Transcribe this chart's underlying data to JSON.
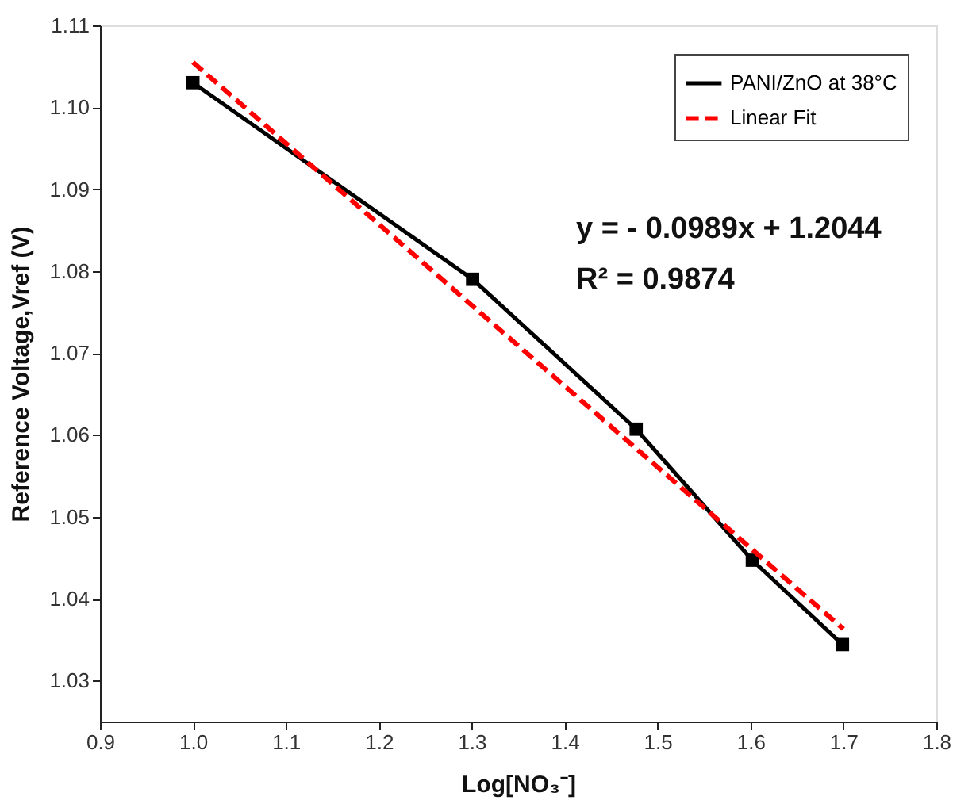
{
  "chart_data": {
    "type": "line",
    "xlabel": "Log[NO₃⁻]",
    "ylabel": "Reference Voltage,Vref (V)",
    "xlim": [
      0.9,
      1.8
    ],
    "xticks": [
      0.9,
      {
        "value": 1,
        "label": "1.0"
      },
      1.1,
      1.2,
      1.3,
      1.4,
      1.5,
      1.6,
      1.7,
      1.8
    ],
    "ylim": [
      1.025,
      1.11
    ],
    "yticks": [
      1.03,
      1.04,
      1.05,
      1.06,
      1.07,
      1.08,
      1.09,
      {
        "value": 1.1,
        "label": "1.10"
      },
      1.11
    ],
    "grid": false,
    "legend": "top right",
    "series": [
      {
        "name": "PANI/ZnO at 38°C",
        "color": "#000000",
        "marker": "square",
        "line_style": "solid",
        "x": [
          1.0,
          1.301,
          1.477,
          1.602,
          1.699
        ],
        "values": [
          1.103,
          1.079,
          1.0607,
          1.0447,
          1.0344
        ]
      },
      {
        "name": "Linear Fit",
        "color": "#ff0000",
        "marker": "none",
        "line_style": "dashed",
        "x": [
          1.0,
          1.7
        ],
        "values": [
          1.1055,
          1.0363
        ]
      }
    ],
    "annotations": [
      "y = - 0.0989x + 1.2044",
      "R² = 0.9874"
    ]
  }
}
